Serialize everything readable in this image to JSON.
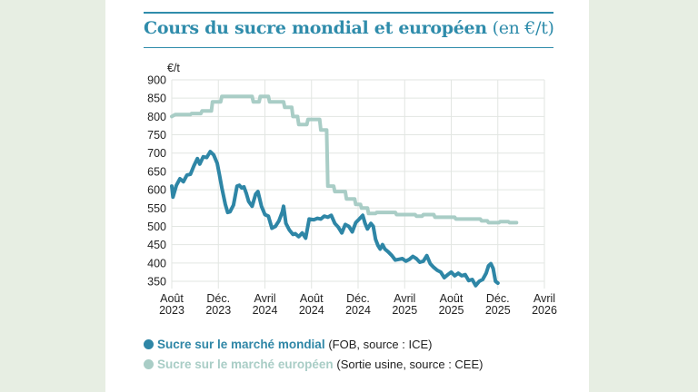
{
  "colors": {
    "world": "#2e86a6",
    "europe": "#a9cdc6",
    "accent": "#2f8cab",
    "background": "#e7eee3"
  },
  "chart_data": {
    "type": "line",
    "title": "Cours du sucre mondial et européen",
    "title_unit": "(en €/t)",
    "ylabel": "€/t",
    "ylim": [
      330,
      900
    ],
    "yticks": [
      350,
      400,
      450,
      500,
      550,
      600,
      650,
      700,
      750,
      800,
      850,
      900
    ],
    "xlim": [
      0,
      32
    ],
    "xticks": [
      {
        "m": 0,
        "label1": "Août",
        "label2": "2023"
      },
      {
        "m": 4,
        "label1": "Déc.",
        "label2": "2023"
      },
      {
        "m": 8,
        "label1": "Avril",
        "label2": "2024"
      },
      {
        "m": 12,
        "label1": "Août",
        "label2": "2024"
      },
      {
        "m": 16,
        "label1": "Déc.",
        "label2": "2024"
      },
      {
        "m": 20,
        "label1": "Avril",
        "label2": "2025"
      },
      {
        "m": 24,
        "label1": "Août",
        "label2": "2025"
      },
      {
        "m": 28,
        "label1": "Déc.",
        "label2": "2025"
      },
      {
        "m": 32,
        "label1": "Avril",
        "label2": "2026"
      }
    ],
    "grid": true,
    "legend_position": "bottom",
    "series": [
      {
        "name": "Sucre sur le marché mondial",
        "source": "(FOB, source : ICE)",
        "points": [
          [
            0,
            610
          ],
          [
            0.1,
            580
          ],
          [
            0.4,
            612
          ],
          [
            0.7,
            630
          ],
          [
            1,
            622
          ],
          [
            1.3,
            640
          ],
          [
            1.6,
            642
          ],
          [
            1.9,
            665
          ],
          [
            2.2,
            685
          ],
          [
            2.4,
            670
          ],
          [
            2.7,
            690
          ],
          [
            3,
            688
          ],
          [
            3.3,
            704
          ],
          [
            3.6,
            695
          ],
          [
            3.9,
            672
          ],
          [
            4.1,
            640
          ],
          [
            4.3,
            605
          ],
          [
            4.6,
            560
          ],
          [
            4.8,
            538
          ],
          [
            5,
            540
          ],
          [
            5.3,
            558
          ],
          [
            5.6,
            610
          ],
          [
            5.8,
            612
          ],
          [
            6,
            605
          ],
          [
            6.2,
            608
          ],
          [
            6.4,
            590
          ],
          [
            6.6,
            568
          ],
          [
            6.9,
            555
          ],
          [
            7.2,
            588
          ],
          [
            7.4,
            595
          ],
          [
            7.7,
            555
          ],
          [
            8,
            532
          ],
          [
            8.3,
            528
          ],
          [
            8.6,
            495
          ],
          [
            8.9,
            500
          ],
          [
            9.2,
            515
          ],
          [
            9.5,
            540
          ],
          [
            9.6,
            555
          ],
          [
            9.8,
            508
          ],
          [
            10.1,
            490
          ],
          [
            10.4,
            478
          ],
          [
            10.6,
            480
          ],
          [
            10.9,
            472
          ],
          [
            11.2,
            482
          ],
          [
            11.5,
            468
          ],
          [
            11.8,
            520
          ],
          [
            12.2,
            518
          ],
          [
            12.5,
            522
          ],
          [
            12.8,
            520
          ],
          [
            13.1,
            528
          ],
          [
            13.4,
            525
          ],
          [
            13.7,
            530
          ],
          [
            14,
            508
          ],
          [
            14.3,
            498
          ],
          [
            14.6,
            482
          ],
          [
            14.9,
            505
          ],
          [
            15.2,
            500
          ],
          [
            15.5,
            485
          ],
          [
            15.8,
            510
          ],
          [
            16.1,
            520
          ],
          [
            16.4,
            530
          ],
          [
            16.6,
            508
          ],
          [
            16.8,
            493
          ],
          [
            17.1,
            508
          ],
          [
            17.3,
            500
          ],
          [
            17.5,
            465
          ],
          [
            17.7,
            448
          ],
          [
            17.9,
            438
          ],
          [
            18.1,
            450
          ],
          [
            18.3,
            438
          ],
          [
            18.6,
            430
          ],
          [
            18.9,
            420
          ],
          [
            19.2,
            408
          ],
          [
            19.5,
            410
          ],
          [
            19.8,
            412
          ],
          [
            20.1,
            405
          ],
          [
            20.4,
            410
          ],
          [
            20.7,
            418
          ],
          [
            21,
            412
          ],
          [
            21.3,
            402
          ],
          [
            21.6,
            405
          ],
          [
            21.9,
            420
          ],
          [
            22.2,
            398
          ],
          [
            22.5,
            388
          ],
          [
            22.8,
            380
          ],
          [
            23.1,
            375
          ],
          [
            23.4,
            360
          ],
          [
            23.7,
            368
          ],
          [
            24,
            375
          ],
          [
            24.3,
            365
          ],
          [
            24.6,
            372
          ],
          [
            24.9,
            365
          ],
          [
            25.2,
            368
          ],
          [
            25.5,
            352
          ],
          [
            25.8,
            355
          ],
          [
            26.1,
            338
          ],
          [
            26.4,
            350
          ],
          [
            26.7,
            355
          ],
          [
            27,
            372
          ],
          [
            27.2,
            392
          ],
          [
            27.4,
            398
          ],
          [
            27.6,
            385
          ],
          [
            27.8,
            350
          ],
          [
            28,
            345
          ]
        ],
        "points_m": "month index from Août 2023"
      },
      {
        "name": "Sucre sur le marché européen",
        "source": "(Sortie usine, source : CEE)",
        "points": [
          [
            0,
            800
          ],
          [
            0.3,
            805
          ],
          [
            1.6,
            805
          ],
          [
            1.7,
            808
          ],
          [
            2.5,
            808
          ],
          [
            2.6,
            815
          ],
          [
            3.4,
            815
          ],
          [
            3.5,
            840
          ],
          [
            4.2,
            840
          ],
          [
            4.3,
            855
          ],
          [
            6.9,
            855
          ],
          [
            7,
            840
          ],
          [
            7.5,
            840
          ],
          [
            7.6,
            855
          ],
          [
            8.3,
            855
          ],
          [
            8.4,
            840
          ],
          [
            9.6,
            840
          ],
          [
            9.7,
            825
          ],
          [
            10.3,
            825
          ],
          [
            10.4,
            800
          ],
          [
            10.8,
            800
          ],
          [
            10.9,
            778
          ],
          [
            11.6,
            778
          ],
          [
            11.7,
            792
          ],
          [
            12.7,
            792
          ],
          [
            12.8,
            763
          ],
          [
            13.3,
            763
          ],
          [
            13.4,
            610
          ],
          [
            13.9,
            610
          ],
          [
            14,
            595
          ],
          [
            14.9,
            595
          ],
          [
            15,
            575
          ],
          [
            15.7,
            575
          ],
          [
            15.8,
            560
          ],
          [
            16.2,
            560
          ],
          [
            16.3,
            550
          ],
          [
            16.8,
            550
          ],
          [
            16.9,
            535
          ],
          [
            17.5,
            535
          ],
          [
            17.6,
            538
          ],
          [
            19.2,
            538
          ],
          [
            19.3,
            532
          ],
          [
            20.9,
            532
          ],
          [
            21,
            528
          ],
          [
            21.5,
            528
          ],
          [
            21.6,
            532
          ],
          [
            22.5,
            532
          ],
          [
            22.6,
            525
          ],
          [
            24.3,
            525
          ],
          [
            24.4,
            520
          ],
          [
            26.5,
            520
          ],
          [
            26.6,
            515
          ],
          [
            27.1,
            515
          ],
          [
            27.2,
            510
          ],
          [
            28.1,
            510
          ],
          [
            28.2,
            513
          ],
          [
            28.9,
            513
          ],
          [
            29,
            510
          ],
          [
            29.6,
            510
          ]
        ]
      }
    ]
  }
}
